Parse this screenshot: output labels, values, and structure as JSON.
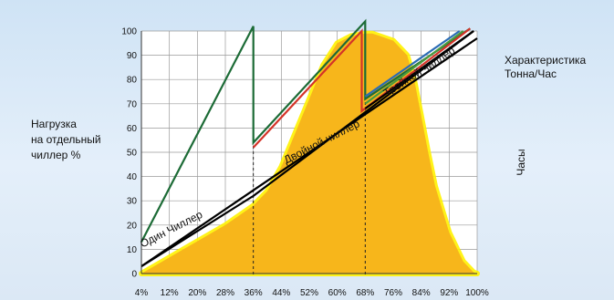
{
  "chart_data": {
    "type": "area",
    "ylabel_lines": [
      "Нагрузка",
      "на отдельный",
      "чиллер %"
    ],
    "right_label_lines": [
      "Характеристика",
      "Тонна/Час"
    ],
    "hours_label": "Часы",
    "x_ticks": [
      "4%",
      "12%",
      "20%",
      "28%",
      "36%",
      "44%",
      "52%",
      "60%",
      "68%",
      "76%",
      "84%",
      "92%",
      "100%"
    ],
    "y_ticks": [
      0,
      10,
      20,
      30,
      40,
      50,
      60,
      70,
      80,
      90,
      100
    ],
    "xlim": [
      4,
      100
    ],
    "ylim": [
      0,
      100
    ],
    "grid": true,
    "stage_boundaries": [
      36,
      68
    ],
    "hours_profile": {
      "x": [
        4,
        10,
        16,
        22,
        28,
        32,
        36,
        40,
        44,
        48,
        52,
        56,
        60,
        64,
        68,
        70,
        72,
        76,
        80,
        82,
        84,
        86,
        88,
        92,
        96,
        99,
        100
      ],
      "y": [
        0,
        5,
        10,
        15,
        20,
        24,
        28,
        34,
        44,
        58,
        72,
        86,
        95,
        98,
        99,
        99,
        98,
        96,
        90,
        80,
        65,
        50,
        36,
        17,
        5,
        0.5,
        0
      ]
    },
    "capacity_line": {
      "x": [
        4,
        100
      ],
      "y": [
        3,
        97
      ]
    },
    "series": [
      {
        "color": "#1c6b36",
        "x": [
          4,
          36,
          36,
          68,
          68,
          98
        ],
        "y": [
          13,
          102,
          54,
          104,
          72,
          101
        ]
      },
      {
        "color": "#d43328",
        "x": [
          36,
          67,
          67,
          98
        ],
        "y": [
          52,
          100,
          67,
          101
        ]
      },
      {
        "color": "#2b6cb5",
        "x": [
          68,
          95
        ],
        "y": [
          73,
          100
        ]
      },
      {
        "color": "#4a9a3e",
        "x": [
          68,
          96
        ],
        "y": [
          70,
          100
        ]
      }
    ],
    "stage_lines": [
      {
        "label": "Один Чиллер",
        "x1": 4,
        "y1": 3,
        "x2": 36,
        "y2": 32,
        "label_at": [
          13,
          17
        ],
        "label_angle_deg": -27
      },
      {
        "label": "Двойной чиллер",
        "x1": 36,
        "y1": 32,
        "x2": 99,
        "y2": 100,
        "label_at": [
          56,
          53
        ],
        "label_angle_deg": -27
      },
      {
        "label": "Тройной чиллер",
        "x1": 68,
        "y1": 68,
        "x2": 99,
        "y2": 100,
        "label_at": [
          84,
          82
        ],
        "label_angle_deg": -33
      }
    ],
    "colors": {
      "fill": "#f7b61b",
      "glow": "#fff200",
      "grid": "#9a9a9a"
    }
  }
}
